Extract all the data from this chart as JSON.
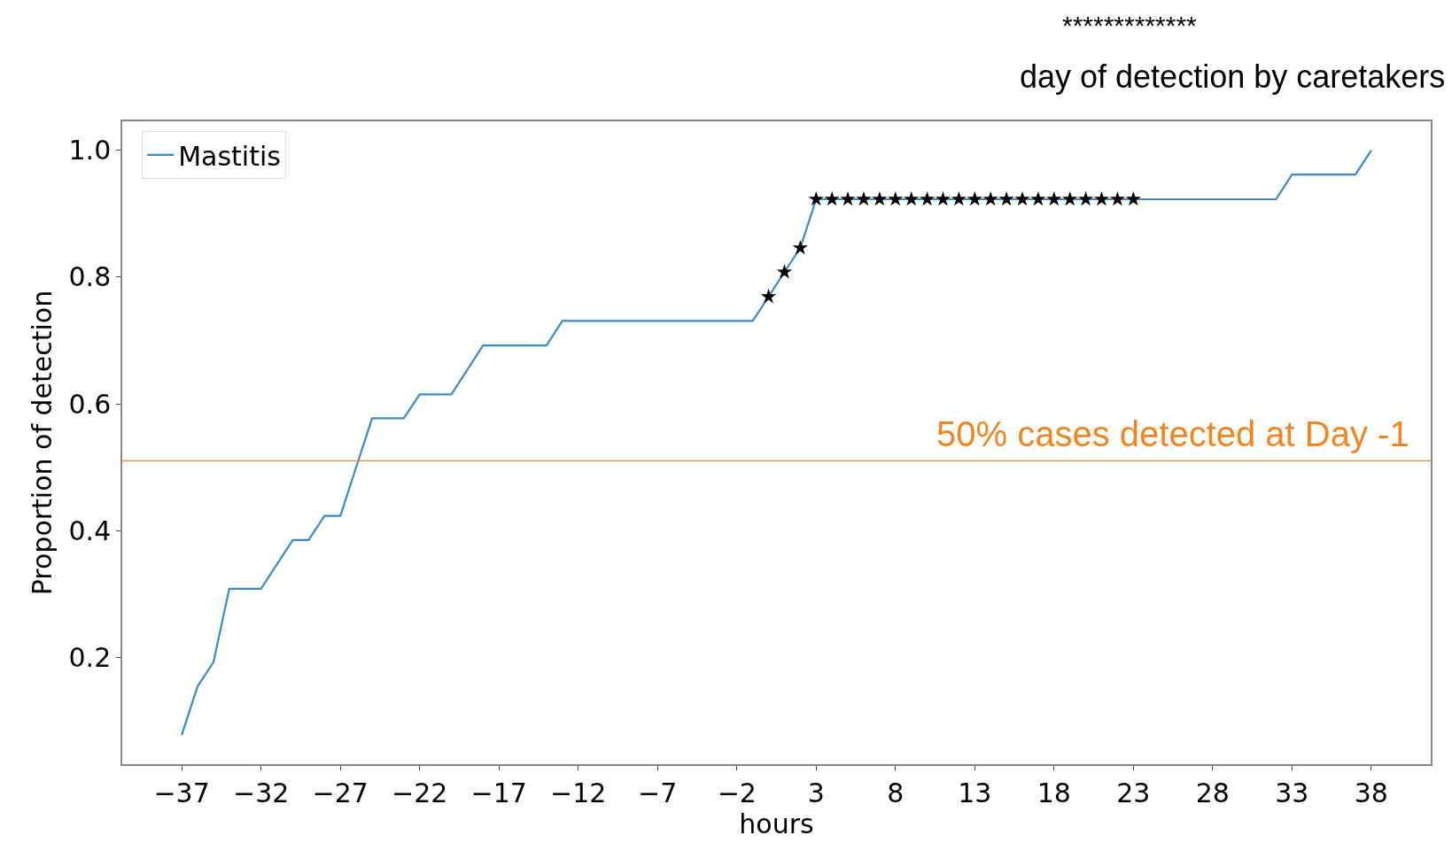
{
  "chart_data": {
    "type": "line",
    "xlabel": "hours",
    "ylabel": "Proportion of detection",
    "annotations": [
      "*************",
      "day of detection by caretakers"
    ],
    "series": [
      {
        "name": "Mastitis",
        "color": "#3a8ac8",
        "marker": "none",
        "x": [
          -37,
          -36,
          -35,
          -34,
          -32,
          -30,
          -29,
          -28,
          -27,
          -25,
          -23,
          -22,
          -20,
          -18,
          -14,
          -13,
          -1,
          0,
          1,
          2,
          3,
          32,
          33,
          37,
          38
        ],
        "values": [
          0.077,
          0.154,
          0.192,
          0.308,
          0.308,
          0.385,
          0.385,
          0.423,
          0.423,
          0.577,
          0.577,
          0.615,
          0.615,
          0.692,
          0.692,
          0.731,
          0.731,
          0.769,
          0.808,
          0.846,
          0.923,
          0.923,
          0.962,
          0.962,
          1.0
        ]
      },
      {
        "type": "scatter",
        "color": "#000000",
        "marker": "star",
        "x": [
          0,
          1,
          2,
          3,
          4,
          5,
          6,
          7,
          8,
          9,
          10,
          11,
          12,
          13,
          14,
          15,
          16,
          17,
          18,
          19,
          20,
          21,
          22,
          23
        ],
        "values": [
          0.769,
          0.808,
          0.846,
          0.923,
          0.923,
          0.923,
          0.923,
          0.923,
          0.923,
          0.923,
          0.923,
          0.923,
          0.923,
          0.923,
          0.923,
          0.923,
          0.923,
          0.923,
          0.923,
          0.923,
          0.923,
          0.923,
          0.923,
          0.923
        ]
      }
    ],
    "ref_lines": [
      {
        "axis": "y",
        "value": 0.51,
        "label": "50% cases detected at Day -1",
        "color": "#f5841f"
      }
    ],
    "xlim": [
      -40.75,
      41.75
    ],
    "xticks": [
      {
        "value": -37,
        "label": "−37"
      },
      {
        "value": -32,
        "label": "−32"
      },
      {
        "value": -27,
        "label": "−27"
      },
      {
        "value": -22,
        "label": "−22"
      },
      {
        "value": -17,
        "label": "−17"
      },
      {
        "value": -12,
        "label": "−12"
      },
      {
        "value": -7,
        "label": "−7"
      },
      {
        "value": -2,
        "label": "−2"
      },
      3,
      8,
      13,
      18,
      23,
      28,
      33,
      38
    ],
    "ylim": [
      0.031,
      1.046
    ],
    "yticks": [
      0.2,
      0.4,
      0.6,
      0.8,
      {
        "value": 1.0,
        "label": "1.0"
      }
    ],
    "legend": "top left",
    "line_style": "solid"
  }
}
